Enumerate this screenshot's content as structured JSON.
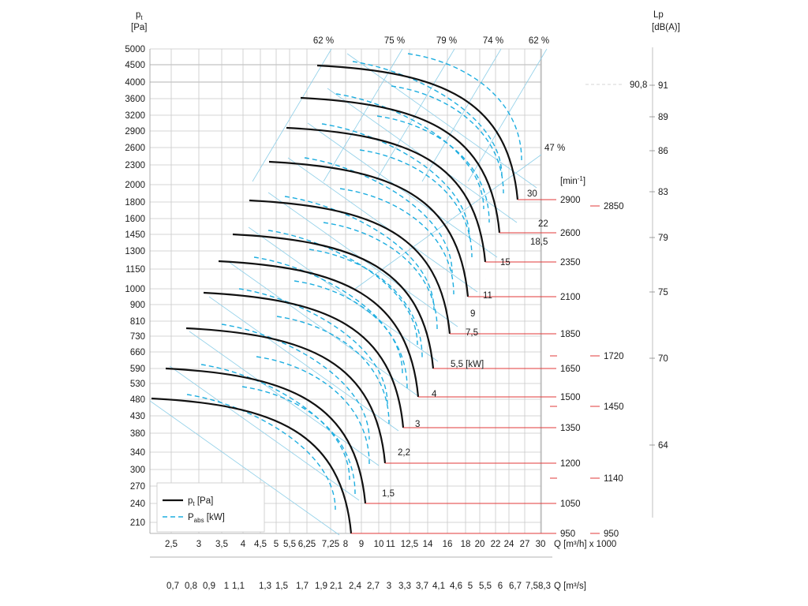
{
  "chart_data": {
    "type": "line",
    "title": "",
    "y_axis": {
      "unit_symbol": "p",
      "unit_subscript": "t",
      "unit": "[Pa]",
      "ticks": [
        "5000",
        "4500",
        "4000",
        "3600",
        "3200",
        "2900",
        "2600",
        "2300",
        "2000",
        "1800",
        "1600",
        "1450",
        "1300",
        "1150",
        "1000",
        "900",
        "810",
        "730",
        "660",
        "590",
        "530",
        "480",
        "430",
        "380",
        "340",
        "300",
        "270",
        "240",
        "210"
      ]
    },
    "x_axis_m3h": {
      "ticks": [
        "2,5",
        "3",
        "3,5",
        "4",
        "4,5",
        "5",
        "5,5",
        "6,25",
        "7,25",
        "8",
        "9",
        "10",
        "11",
        "12,5",
        "14",
        "16",
        "18",
        "20",
        "22",
        "24",
        "27",
        "30"
      ],
      "label": "Q [m³/h] x 1000"
    },
    "x_axis_m3s": {
      "ticks": [
        "0,7",
        "0,8",
        "0,9",
        "1",
        "1,1",
        "1,3",
        "1,5",
        "1,7",
        "1,9",
        "2,1",
        "2,4",
        "2,7",
        "3",
        "3,3",
        "3,7",
        "4,1",
        "4,6",
        "5",
        "5,5",
        "6",
        "6,7",
        "7,5",
        "8,3"
      ],
      "label": "Q [m³/s]"
    },
    "efficiency_labels": [
      "62 %",
      "75 %",
      "79 %",
      "74 %",
      "62 %",
      "47 %"
    ],
    "speed_unit": "[min⁻¹]",
    "speeds": [
      "2900",
      "2600",
      "2350",
      "2100",
      "1850",
      "1650",
      "1500",
      "1350",
      "1200",
      "1050",
      "950"
    ],
    "extra_speeds": [
      "2850",
      "1720",
      "1450",
      "1140",
      "950"
    ],
    "power_labels": [
      "30",
      "22",
      "18,5",
      "15",
      "11",
      "9",
      "7,5",
      "5,5 [kW]",
      "4",
      "3",
      "2,2",
      "1,5"
    ],
    "sound_axis": {
      "label": "Lp",
      "unit": "[dB(A)]",
      "ticks": [
        "91",
        "89",
        "86",
        "83",
        "79",
        "75",
        "70",
        "64"
      ],
      "marker": "90,8"
    },
    "legend": {
      "pt_symbol": "p",
      "pt_sub": "t",
      "pt_unit": " [Pa]",
      "pabs_symbol": "P",
      "pabs_sub": "abs",
      "pabs_unit": " [kW]"
    },
    "curves": [
      {
        "speed": 950,
        "pt_max": 480,
        "power_kw": ""
      },
      {
        "speed": 1050,
        "pt_max": 590,
        "power_kw": "1,5"
      },
      {
        "speed": 1200,
        "pt_max": 760,
        "power_kw": "2,2"
      },
      {
        "speed": 1350,
        "pt_max": 980,
        "power_kw": "3"
      },
      {
        "speed": 1500,
        "pt_max": 1210,
        "power_kw": "4"
      },
      {
        "speed": 1650,
        "pt_max": 1460,
        "power_kw": "5,5"
      },
      {
        "speed": 1850,
        "pt_max": 1830,
        "power_kw": "7,5"
      },
      {
        "speed": 2100,
        "pt_max": 2350,
        "power_kw": "11"
      },
      {
        "speed": 2350,
        "pt_max": 2940,
        "power_kw": "15"
      },
      {
        "speed": 2600,
        "pt_max": 3650,
        "power_kw": "18,5"
      },
      {
        "speed": 2900,
        "pt_max": 4500,
        "power_kw": "30"
      }
    ],
    "grid": true,
    "colors": {
      "pressure": "#111111",
      "power": "#1eaee0",
      "speed_marks": "#e03a3a",
      "efficiency_lines": "#8fcfe8"
    }
  }
}
